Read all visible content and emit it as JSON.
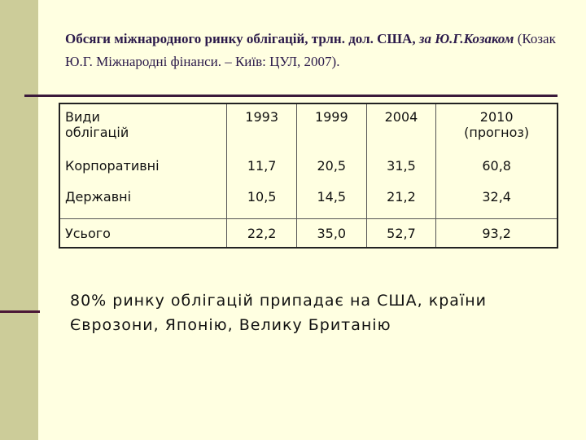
{
  "header": {
    "title": "Обсяги міжнародного ринку облігацій, трлн. дол. США,",
    "author": "за Ю.Г.Козаком",
    "source": "(Козак Ю.Г. Міжнародні фінанси. – Київ: ЦУЛ, 2007)."
  },
  "table": {
    "columns": [
      "Види\nоблігацій",
      "1993",
      "1999",
      "2004",
      "2010\n(прогноз)"
    ],
    "rows": [
      [
        "Корпоративні",
        "11,7",
        "20,5",
        "31,5",
        "60,8"
      ],
      [
        "Державні",
        "10,5",
        "14,5",
        "21,2",
        "32,4"
      ],
      [
        "Усього",
        "22,2",
        "35,0",
        "52,7",
        "93,2"
      ]
    ]
  },
  "note": "80% ринку облігацій припадає на США, країни Єврозони, Японію, Велику Британію"
}
